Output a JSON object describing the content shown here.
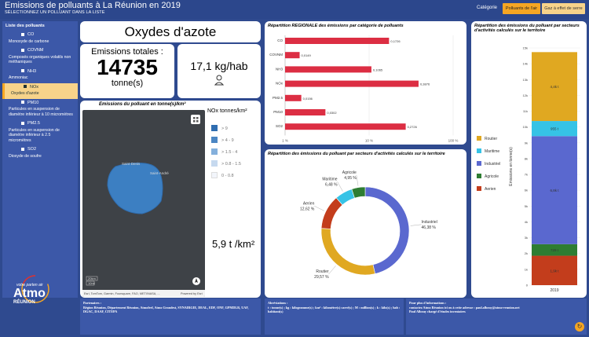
{
  "header": {
    "title": "Emissions de polluants à La Réunion en 2019",
    "subtitle": "SÉLECTIONNEZ UN POLLUANT DANS LA LISTE",
    "category_label": "Catégorie",
    "btn_air": "Polluants de l'air",
    "btn_ges": "Gaz à effet de serre"
  },
  "sidebar": {
    "title": "Liste des polluants",
    "items": [
      {
        "code": "CO",
        "name": "Monoxyde de carbone"
      },
      {
        "code": "COVNM",
        "name": "Composés organiques volatils non méthaniques"
      },
      {
        "code": "NH3",
        "name": "Ammoniac"
      },
      {
        "code": "NOx",
        "name": "Oxydes d'azote"
      },
      {
        "code": "PM10",
        "name": "Particules en suspension de diamètre inférieur à 10 micromètres"
      },
      {
        "code": "PM2.5",
        "name": "Particules en suspension de diamètre inférieur à 2.5 micromètres"
      },
      {
        "code": "SO2",
        "name": "Dioxyde de soufre"
      }
    ],
    "logo_brand": "Atmo",
    "logo_tagline": "votre parten air",
    "logo_region": "RÉUNION"
  },
  "pollutant_title": "Oxydes d'azote",
  "totals": {
    "label": "Emissions totales :",
    "value": "14735",
    "unit": "tonne(s)"
  },
  "per_hab": {
    "value": "17,1 kg/hab",
    "icon": "person-icon"
  },
  "map": {
    "title": "Emissions du polluant en tonne(s)/km²",
    "legend_title": "NOx tonnes/km²",
    "legend": [
      {
        "label": "> 9",
        "color": "#2f6db0"
      },
      {
        "label": "> 4 - 9",
        "color": "#4b86c3"
      },
      {
        "label": "> 1.5 - 4",
        "color": "#84b0dc"
      },
      {
        "label": "> 0.8 - 1.5",
        "color": "#c6d9ef"
      },
      {
        "label": "0 - 0.8",
        "color": "#f2f5fb"
      }
    ],
    "density": "5,9 t /km²",
    "scale1": "20km",
    "scale2": "10mi",
    "attribution": "Esri, TomTom, Garmin, Foursquare, FAO, METI/NASA, ...",
    "powered": "Powered by Esri",
    "place1": "Saint-Denis",
    "place2": "Saint-André"
  },
  "footer": {
    "col1_title": "Partenaires :",
    "col1_text": "Région Réunion, Département Réunion, Atmofeel, Atmo Grandest, SYNAIRGIE, DEAL, EDF, ONF, GPMDLR, UAF, DGAC, DAAF, CITEPA",
    "col2_title": "Abréviations :",
    "col2_text": "t : tonne(s) ; kg : kilogramme(s) ; km² : kilomètre(s) carré(s) ; M : million(s) ; k : kilo(s) ; hab : habitant(s)",
    "col3_title": "Pour plus d'informations :",
    "col3_text": "contactez Atmo Réunion ici ou à cette adresse : paul.albouy@atmo-reunion.net",
    "col3_text2": "Paul Albouy chargé d'études inventaires"
  },
  "chart_data": [
    {
      "type": "bar",
      "orientation": "horizontal",
      "title": "Répartition REGIONALE des émissions par catégorie de polluants",
      "categories": [
        "CO",
        "COVNM",
        "NH3",
        "NOx",
        "PM2.5",
        "PM10",
        "SO2"
      ],
      "values": [
        0.1726,
        0.0149,
        0.1065,
        0.3876,
        0.0156,
        0.0302,
        0.2726
      ],
      "value_labels": [
        "0,1726",
        "0,0149",
        "0,1065",
        "0,3876",
        "0,0156",
        "0,0302",
        "0,2726"
      ],
      "x_scale": "log",
      "x_ticks": [
        "1 %",
        "10 %",
        "100 %"
      ],
      "color": "#dc2e43"
    },
    {
      "type": "pie",
      "title": "Répartition des émissions du polluant par secteurs d'activités calculés sur le territoire",
      "labels": [
        "Industriel",
        "Routier",
        "Aerien",
        "Maritime",
        "Agricole"
      ],
      "values": [
        46.38,
        29.57,
        12.62,
        6.48,
        4.95
      ],
      "value_labels": [
        "46,38 %",
        "29,57 %",
        "12,62 %",
        "6,48 %",
        "4,95 %"
      ],
      "colors": [
        "#5a68cf",
        "#e0a821",
        "#c33d1c",
        "#36c3e6",
        "#2e7d32"
      ],
      "donut": true
    },
    {
      "type": "bar",
      "stacked": true,
      "title": "Répartition des émissions du polluant par secteurs d'activités calculés sur le territoire",
      "categories": [
        "2019"
      ],
      "ylabel": "Emissions en tonne(s)",
      "y_ticks": [
        "0",
        "1k",
        "2k",
        "3k",
        "4k",
        "5k",
        "6k",
        "7k",
        "8k",
        "9k",
        "10k",
        "11k",
        "12k",
        "13k",
        "14k",
        "15k"
      ],
      "ylim": [
        0,
        15000
      ],
      "series": [
        {
          "name": "Aerien",
          "values": [
            1860
          ],
          "label": "1,9k t",
          "color": "#c33d1c"
        },
        {
          "name": "Agricole",
          "values": [
            729
          ],
          "label": "729 t",
          "color": "#2e7d32"
        },
        {
          "name": "Industriel",
          "values": [
            6834
          ],
          "label": "6,8k t",
          "color": "#5a68cf"
        },
        {
          "name": "Maritime",
          "values": [
            955
          ],
          "label": "955 t",
          "color": "#36c3e6"
        },
        {
          "name": "Routier",
          "values": [
            4357
          ],
          "label": "4,4k t",
          "color": "#e0a821"
        }
      ],
      "legend_order": [
        "Routier",
        "Maritime",
        "Industriel",
        "Agricole",
        "Aerien"
      ]
    }
  ]
}
